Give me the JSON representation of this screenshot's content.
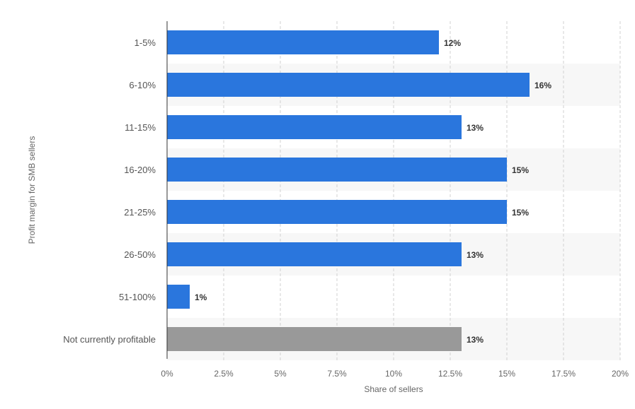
{
  "chart_data": {
    "type": "bar",
    "orientation": "horizontal",
    "categories": [
      "1-5%",
      "6-10%",
      "11-15%",
      "16-20%",
      "21-25%",
      "26-50%",
      "51-100%",
      "Not currently profitable"
    ],
    "values": [
      12,
      16,
      13,
      15,
      15,
      13,
      1,
      13
    ],
    "value_labels": [
      "12%",
      "16%",
      "13%",
      "15%",
      "15%",
      "13%",
      "1%",
      "13%"
    ],
    "bar_colors": [
      "#2a76dd",
      "#2a76dd",
      "#2a76dd",
      "#2a76dd",
      "#2a76dd",
      "#2a76dd",
      "#2a76dd",
      "#999999"
    ],
    "xlabel": "Share of sellers",
    "ylabel": "Profit margin for SMB sellers",
    "xlim": [
      0,
      20
    ],
    "xticks": [
      0,
      2.5,
      5,
      7.5,
      10,
      12.5,
      15,
      17.5,
      20
    ],
    "xtick_labels": [
      "0%",
      "2.5%",
      "5%",
      "7.5%",
      "10%",
      "12.5%",
      "15%",
      "17.5%",
      "20%"
    ],
    "grid": true,
    "alternating_row_bands": true
  }
}
